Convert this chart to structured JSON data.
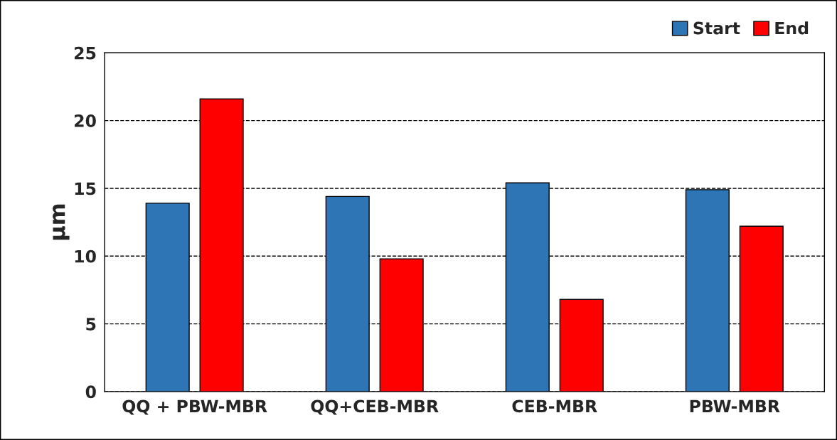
{
  "chart_data": {
    "type": "bar",
    "ylabel": "µm",
    "categories": [
      "QQ + PBW-MBR",
      "QQ+CEB-MBR",
      "CEB-MBR",
      "PBW-MBR"
    ],
    "series": [
      {
        "name": "Start",
        "color": "#2e75b6",
        "values": [
          13.9,
          14.4,
          15.4,
          14.9
        ]
      },
      {
        "name": "End",
        "color": "#ff0000",
        "values": [
          21.6,
          9.8,
          6.8,
          12.2
        ]
      }
    ],
    "ylim": [
      0,
      25
    ],
    "yticks": [
      0,
      5,
      10,
      15,
      20,
      25
    ],
    "grid": "y",
    "legend": "top right"
  }
}
